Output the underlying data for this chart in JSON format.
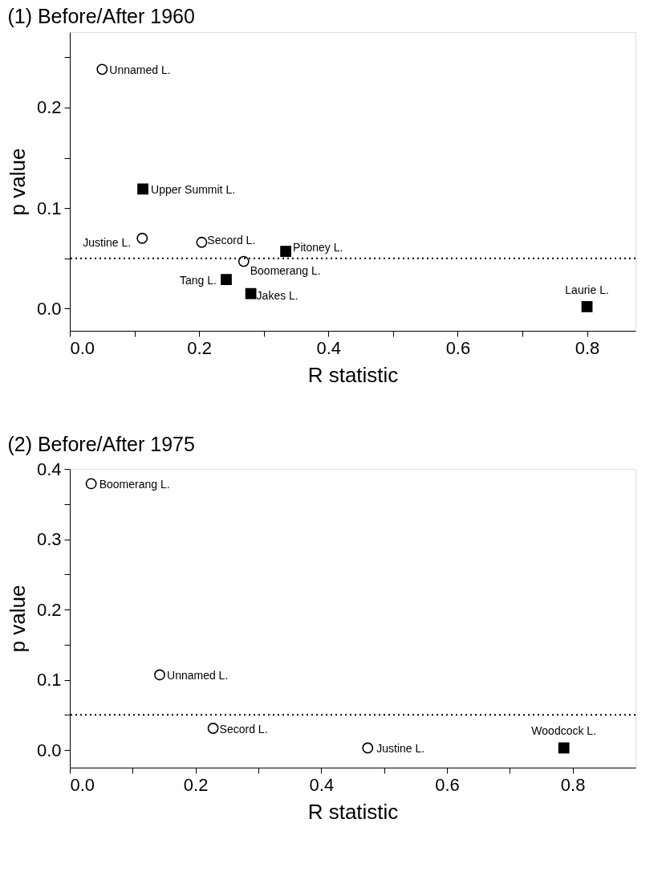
{
  "chart_data": [
    {
      "type": "scatter",
      "title": "(1) Before/After   1960",
      "xlabel": "R statistic",
      "ylabel": "p value",
      "grid": false,
      "xlim": [
        0,
        0.875
      ],
      "ylim": [
        -0.022,
        0.275
      ],
      "xticks": [
        {
          "value": 0,
          "label": "0.0"
        },
        {
          "value": 0.1,
          "label": null
        },
        {
          "value": 0.2,
          "label": "0.2"
        },
        {
          "value": 0.3,
          "label": null
        },
        {
          "value": 0.4,
          "label": "0.4"
        },
        {
          "value": 0.5,
          "label": null
        },
        {
          "value": 0.6,
          "label": "0.6"
        },
        {
          "value": 0.7,
          "label": null
        },
        {
          "value": 0.8,
          "label": "0.8"
        }
      ],
      "yticks": [
        {
          "value": 0,
          "label": "0.0"
        },
        {
          "value": 0.05,
          "label": null
        },
        {
          "value": 0.1,
          "label": "0.1"
        },
        {
          "value": 0.15,
          "label": null
        },
        {
          "value": 0.2,
          "label": "0.2"
        },
        {
          "value": 0.25,
          "label": null
        }
      ],
      "series": [
        {
          "color": "#000000",
          "marker": "circle",
          "x": [
            0.05,
            0.112,
            0.204,
            0.269
          ],
          "values": [
            0.238,
            0.07,
            0.066,
            0.047
          ]
        },
        {
          "color": "#000000",
          "marker": "square",
          "x": [
            0.113,
            0.334,
            0.242,
            0.28,
            0.8
          ],
          "values": [
            0.119,
            0.057,
            0.029,
            0.015,
            0.002
          ]
        }
      ],
      "ref_lines": [
        {
          "axis": "y",
          "value": 0.05,
          "line_style": "dotted",
          "color": "#000000"
        }
      ],
      "annotations": [
        {
          "text": "Unnamed L.",
          "x": 0.05,
          "y": 0.238
        },
        {
          "text": "Justine L.",
          "x": 0.112,
          "y": 0.07
        },
        {
          "text": "Secord L.",
          "x": 0.204,
          "y": 0.066
        },
        {
          "text": "Boomerang L.",
          "x": 0.269,
          "y": 0.047
        },
        {
          "text": "Upper Summit L.",
          "x": 0.113,
          "y": 0.119
        },
        {
          "text": "Pitoney L.",
          "x": 0.334,
          "y": 0.057
        },
        {
          "text": "Tang L.",
          "x": 0.242,
          "y": 0.029
        },
        {
          "text": "Jakes L.",
          "x": 0.28,
          "y": 0.015
        },
        {
          "text": "Laurie L.",
          "x": 0.8,
          "y": 0.002
        }
      ]
    },
    {
      "type": "scatter",
      "title": "(2)  Before/After 1975",
      "xlabel": "R statistic",
      "ylabel": "p value",
      "grid": false,
      "xlim": [
        0,
        0.9
      ],
      "ylim": [
        -0.025,
        0.4
      ],
      "xticks": [
        {
          "value": 0,
          "label": "0.0"
        },
        {
          "value": 0.1,
          "label": null
        },
        {
          "value": 0.2,
          "label": "0.2"
        },
        {
          "value": 0.3,
          "label": null
        },
        {
          "value": 0.4,
          "label": "0.4"
        },
        {
          "value": 0.5,
          "label": null
        },
        {
          "value": 0.6,
          "label": "0.6"
        },
        {
          "value": 0.7,
          "label": null
        },
        {
          "value": 0.8,
          "label": "0.8"
        }
      ],
      "yticks": [
        {
          "value": 0,
          "label": "0.0"
        },
        {
          "value": 0.05,
          "label": null
        },
        {
          "value": 0.1,
          "label": "0.1"
        },
        {
          "value": 0.15,
          "label": null
        },
        {
          "value": 0.2,
          "label": "0.2"
        },
        {
          "value": 0.25,
          "label": null
        },
        {
          "value": 0.3,
          "label": "0.3"
        },
        {
          "value": 0.35,
          "label": null
        },
        {
          "value": 0.4,
          "label": "0.4"
        }
      ],
      "series": [
        {
          "color": "#000000",
          "marker": "circle",
          "x": [
            0.034,
            0.143,
            0.228,
            0.474
          ],
          "values": [
            0.379,
            0.107,
            0.031,
            0.003
          ]
        },
        {
          "color": "#000000",
          "marker": "square",
          "x": [
            0.786
          ],
          "values": [
            0.003
          ]
        }
      ],
      "ref_lines": [
        {
          "axis": "y",
          "value": 0.05,
          "line_style": "dotted",
          "color": "#000000"
        }
      ],
      "annotations": [
        {
          "text": "Boomerang L.",
          "x": 0.034,
          "y": 0.379
        },
        {
          "text": "Unnamed L.",
          "x": 0.143,
          "y": 0.107
        },
        {
          "text": "Secord L.",
          "x": 0.228,
          "y": 0.031
        },
        {
          "text": "Justine L.",
          "x": 0.474,
          "y": 0.003
        },
        {
          "text": "Woodcock L.",
          "x": 0.786,
          "y": 0.003
        }
      ]
    }
  ]
}
